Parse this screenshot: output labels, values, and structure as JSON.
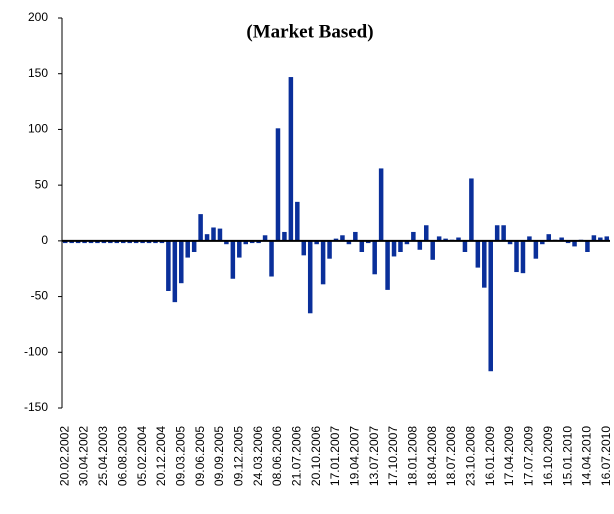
{
  "chart_data": {
    "type": "bar",
    "title": "(Market Based)",
    "color": "#0a2f9a",
    "categories": [
      "20.02.2002",
      null,
      null,
      "30.04.2002",
      null,
      null,
      "25.04.2003",
      null,
      null,
      "06.08.2003",
      null,
      null,
      "05.02.2004",
      null,
      null,
      "20.12.2004",
      null,
      null,
      "09.03.2005",
      null,
      null,
      "09.06.2005",
      null,
      null,
      "09.09.2005",
      null,
      null,
      "09.12.2005",
      null,
      null,
      "24.03.2006",
      null,
      null,
      "08.06.2006",
      null,
      null,
      "21.07.2006",
      null,
      null,
      "20.10.2006",
      null,
      null,
      "17.01.2007",
      null,
      null,
      "19.04.2007",
      null,
      null,
      "13.07.2007",
      null,
      null,
      "17.10.2007",
      null,
      null,
      "18.01.2008",
      null,
      null,
      "18.04.2008",
      null,
      null,
      "18.07.2008",
      null,
      null,
      "23.10.2008",
      null,
      null,
      "16.01.2009",
      null,
      null,
      "17.04.2009",
      null,
      null,
      "17.07.2009",
      null,
      null,
      "16.10.2009",
      null,
      null,
      "15.01.2010",
      null,
      null,
      "14.04.2010",
      null,
      null,
      "16.07.2010"
    ],
    "values": [
      -2,
      -2,
      -2,
      -2,
      -2,
      -2,
      -2,
      -2,
      -2,
      -2,
      -2,
      -2,
      -2,
      -2,
      -2,
      -2,
      -45,
      -55,
      -38,
      -15,
      -10,
      24,
      6,
      12,
      11,
      -3,
      -34,
      -15,
      -3,
      -2,
      -2,
      5,
      -32,
      101,
      8,
      147,
      35,
      -13,
      -65,
      -3,
      -39,
      -16,
      2,
      5,
      -3,
      8,
      -10,
      -2,
      -30,
      65,
      -44,
      -14,
      -10,
      -3,
      8,
      -8,
      14,
      -17,
      4,
      2,
      1,
      3,
      -10,
      56,
      -24,
      -42,
      -117,
      14,
      14,
      -3,
      -28,
      -29,
      4,
      -16,
      -3,
      6,
      1,
      3,
      -2,
      -5,
      1,
      -10,
      5,
      3,
      4
    ],
    "ylim": [
      -150,
      200
    ],
    "yticks": [
      -150,
      -100,
      -50,
      0,
      50,
      100,
      150,
      200
    ],
    "grid": false
  }
}
